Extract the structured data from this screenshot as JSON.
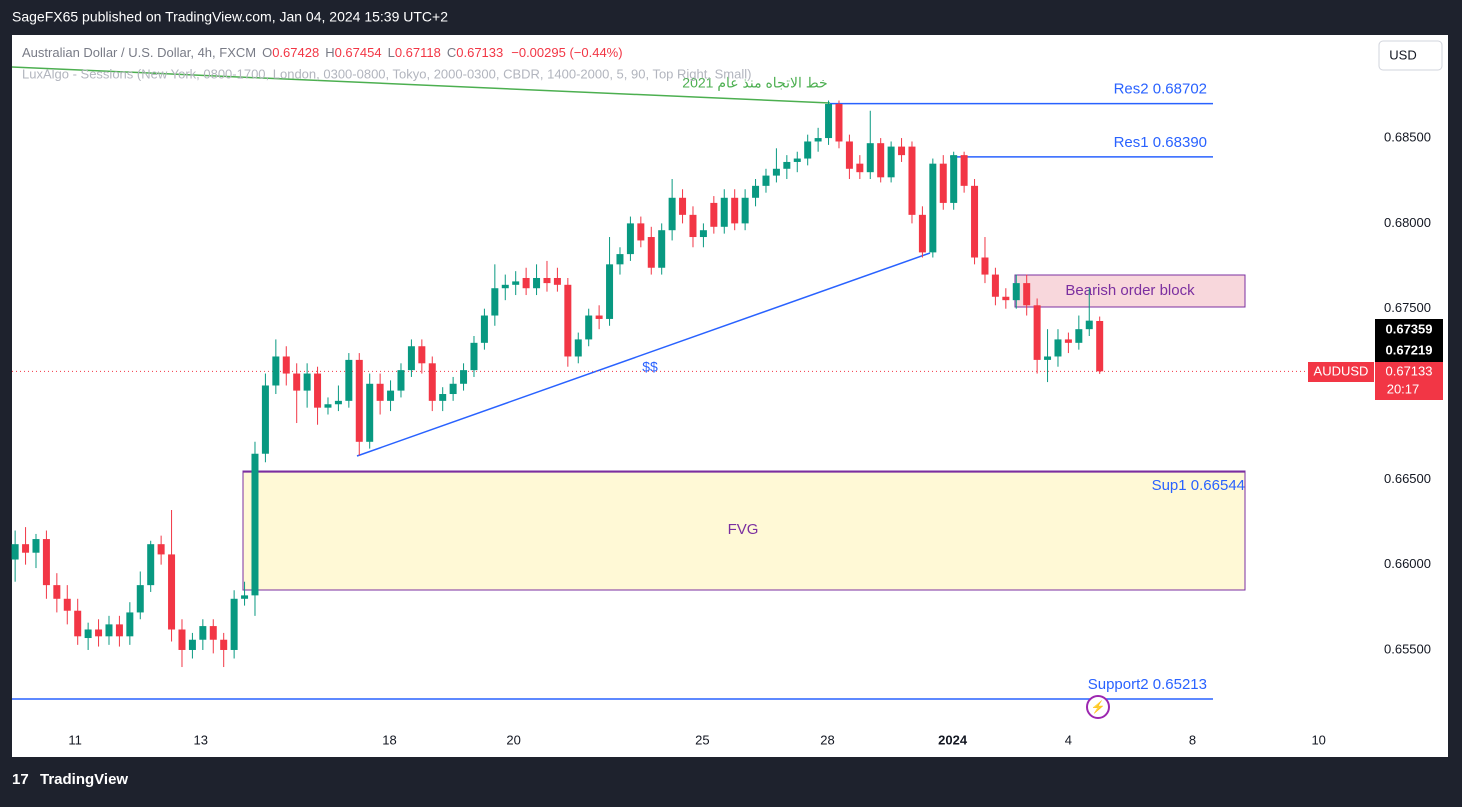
{
  "header": {
    "publisher": "SageFX65 published on TradingView.com, Jan 04, 2024 15:39 UTC+2",
    "footer": "TradingView",
    "currency": "USD"
  },
  "legend": {
    "symbol": "Australian Dollar / U.S. Dollar, 4h, FXCM",
    "open_label": "O",
    "open": "0.67428",
    "high_label": "H",
    "high": "0.67454",
    "low_label": "L",
    "low": "0.67118",
    "close_label": "C",
    "close": "0.67133",
    "change": "−0.00295 (−0.44%)",
    "indicator": "LuxAlgo - Sessions (New York, 0800-1700, London, 0300-0800, Tokyo, 2000-0300, CBDR, 1400-2000, 5, 90, Top Right, Small)"
  },
  "annotations": {
    "trendline": "خط الاتجاه منذ عام 2021",
    "liquidity": "$$",
    "fvg": "FVG",
    "order_block": "Bearish order block"
  },
  "price_tags": {
    "tag1": "0.67359",
    "tag2": "0.67219",
    "symbol": "AUDUSD",
    "last": "0.67133",
    "countdown": "20:17"
  },
  "chart_data": {
    "type": "candlestick",
    "ylim": [
      0.65031,
      0.69104
    ],
    "yticks": [
      {
        "value": 0.685,
        "label": "0.68500"
      },
      {
        "value": 0.68,
        "label": "0.68000"
      },
      {
        "value": 0.675,
        "label": "0.67500"
      },
      {
        "value": 0.67,
        "label": "0.67000"
      },
      {
        "value": 0.665,
        "label": "0.66500"
      },
      {
        "value": 0.66,
        "label": "0.66000"
      },
      {
        "value": 0.655,
        "label": "0.65500"
      }
    ],
    "xlim": [
      -0.3,
      137.4
    ],
    "xticks": [
      {
        "value": 5.75,
        "label": "11"
      },
      {
        "value": 17.8,
        "label": "13"
      },
      {
        "value": 35.9,
        "label": "18"
      },
      {
        "value": 47.8,
        "label": "20"
      },
      {
        "value": 65.9,
        "label": "25"
      },
      {
        "value": 77.9,
        "label": "28"
      },
      {
        "value": 89.9,
        "label": "2024"
      },
      {
        "value": 101,
        "label": "4"
      },
      {
        "value": 112.9,
        "label": "8"
      },
      {
        "value": 125,
        "label": "10"
      }
    ],
    "up_color": "#089981",
    "down_color": "#f23645",
    "levels": [
      {
        "label": "Res2 0.68702",
        "value": 0.68702
      },
      {
        "label": "Res1 0.68390",
        "value": 0.6839
      },
      {
        "label": "Sup1 0.66544",
        "value": 0.66544
      },
      {
        "label": "Support2  0.65213",
        "value": 0.65213
      }
    ],
    "candles": [
      [
        0.6603,
        0.662,
        0.659,
        0.6612
      ],
      [
        0.6612,
        0.6622,
        0.66,
        0.6607
      ],
      [
        0.6607,
        0.6618,
        0.6598,
        0.6615
      ],
      [
        0.6615,
        0.662,
        0.658,
        0.6588
      ],
      [
        0.6588,
        0.6595,
        0.6572,
        0.658
      ],
      [
        0.658,
        0.6588,
        0.6565,
        0.6573
      ],
      [
        0.6573,
        0.658,
        0.6553,
        0.6558
      ],
      [
        0.6557,
        0.6566,
        0.655,
        0.6562
      ],
      [
        0.6562,
        0.6568,
        0.6552,
        0.6558
      ],
      [
        0.6558,
        0.657,
        0.6553,
        0.6565
      ],
      [
        0.6565,
        0.657,
        0.6552,
        0.6558
      ],
      [
        0.6558,
        0.6578,
        0.6553,
        0.6572
      ],
      [
        0.6572,
        0.6596,
        0.6568,
        0.6588
      ],
      [
        0.6588,
        0.6614,
        0.6584,
        0.6612
      ],
      [
        0.6612,
        0.6617,
        0.66,
        0.6606
      ],
      [
        0.6606,
        0.6632,
        0.6555,
        0.6562
      ],
      [
        0.6562,
        0.6568,
        0.654,
        0.655
      ],
      [
        0.655,
        0.656,
        0.6545,
        0.6556
      ],
      [
        0.6556,
        0.6568,
        0.655,
        0.6564
      ],
      [
        0.6564,
        0.6568,
        0.6548,
        0.6556
      ],
      [
        0.6556,
        0.656,
        0.654,
        0.655
      ],
      [
        0.655,
        0.6585,
        0.6545,
        0.658
      ],
      [
        0.658,
        0.659,
        0.6576,
        0.6582
      ],
      [
        0.6582,
        0.6672,
        0.657,
        0.6665
      ],
      [
        0.6665,
        0.6712,
        0.666,
        0.6705
      ],
      [
        0.6705,
        0.6732,
        0.67,
        0.6722
      ],
      [
        0.6722,
        0.6728,
        0.6705,
        0.6712
      ],
      [
        0.6712,
        0.6718,
        0.6683,
        0.6702
      ],
      [
        0.6702,
        0.6718,
        0.6692,
        0.6712
      ],
      [
        0.6712,
        0.6716,
        0.6682,
        0.6692
      ],
      [
        0.6692,
        0.6698,
        0.6688,
        0.6694
      ],
      [
        0.6694,
        0.6705,
        0.669,
        0.6696
      ],
      [
        0.6696,
        0.6724,
        0.6692,
        0.672
      ],
      [
        0.672,
        0.6724,
        0.6664,
        0.6672
      ],
      [
        0.6672,
        0.6712,
        0.6668,
        0.6706
      ],
      [
        0.6706,
        0.6712,
        0.6688,
        0.6696
      ],
      [
        0.6696,
        0.6708,
        0.669,
        0.6702
      ],
      [
        0.6702,
        0.6718,
        0.6698,
        0.6714
      ],
      [
        0.6714,
        0.6732,
        0.671,
        0.6728
      ],
      [
        0.6728,
        0.6732,
        0.6712,
        0.6718
      ],
      [
        0.6718,
        0.6722,
        0.669,
        0.6696
      ],
      [
        0.6696,
        0.6704,
        0.669,
        0.67
      ],
      [
        0.67,
        0.671,
        0.6696,
        0.6706
      ],
      [
        0.6706,
        0.6718,
        0.6702,
        0.6714
      ],
      [
        0.6714,
        0.6734,
        0.671,
        0.673
      ],
      [
        0.673,
        0.675,
        0.6726,
        0.6746
      ],
      [
        0.6746,
        0.6776,
        0.674,
        0.6762
      ],
      [
        0.6762,
        0.677,
        0.6755,
        0.6764
      ],
      [
        0.6764,
        0.6772,
        0.6758,
        0.6766
      ],
      [
        0.6768,
        0.6774,
        0.6758,
        0.6762
      ],
      [
        0.6762,
        0.6776,
        0.6758,
        0.6768
      ],
      [
        0.6768,
        0.6778,
        0.676,
        0.6765
      ],
      [
        0.6768,
        0.6774,
        0.676,
        0.6764
      ],
      [
        0.6764,
        0.6768,
        0.6716,
        0.6722
      ],
      [
        0.6722,
        0.6736,
        0.6718,
        0.6732
      ],
      [
        0.6732,
        0.675,
        0.6728,
        0.6746
      ],
      [
        0.6746,
        0.6752,
        0.6738,
        0.6744
      ],
      [
        0.6744,
        0.6792,
        0.674,
        0.6776
      ],
      [
        0.6776,
        0.6786,
        0.677,
        0.6782
      ],
      [
        0.6782,
        0.6804,
        0.6778,
        0.68
      ],
      [
        0.68,
        0.6804,
        0.6786,
        0.679
      ],
      [
        0.6792,
        0.6798,
        0.677,
        0.6774
      ],
      [
        0.6774,
        0.68,
        0.677,
        0.6796
      ],
      [
        0.6796,
        0.6826,
        0.679,
        0.6815
      ],
      [
        0.6815,
        0.682,
        0.68,
        0.6805
      ],
      [
        0.6805,
        0.681,
        0.6786,
        0.6792
      ],
      [
        0.6792,
        0.68,
        0.6786,
        0.6796
      ],
      [
        0.6812,
        0.6816,
        0.6794,
        0.6798
      ],
      [
        0.6798,
        0.682,
        0.6794,
        0.6815
      ],
      [
        0.6815,
        0.682,
        0.6796,
        0.68
      ],
      [
        0.68,
        0.682,
        0.6796,
        0.6815
      ],
      [
        0.6815,
        0.6826,
        0.681,
        0.6822
      ],
      [
        0.6822,
        0.6832,
        0.6818,
        0.6828
      ],
      [
        0.6828,
        0.6844,
        0.6824,
        0.6832
      ],
      [
        0.6832,
        0.684,
        0.6826,
        0.6836
      ],
      [
        0.6836,
        0.6842,
        0.683,
        0.6838
      ],
      [
        0.6838,
        0.6852,
        0.6834,
        0.6848
      ],
      [
        0.6848,
        0.6856,
        0.6842,
        0.685
      ],
      [
        0.685,
        0.6872,
        0.6846,
        0.687
      ],
      [
        0.687,
        0.6872,
        0.6844,
        0.6848
      ],
      [
        0.6848,
        0.6852,
        0.6826,
        0.6832
      ],
      [
        0.6835,
        0.684,
        0.6826,
        0.683
      ],
      [
        0.683,
        0.6866,
        0.6826,
        0.6847
      ],
      [
        0.6847,
        0.685,
        0.6824,
        0.6827
      ],
      [
        0.6827,
        0.6848,
        0.6824,
        0.6845
      ],
      [
        0.6845,
        0.685,
        0.6836,
        0.684
      ],
      [
        0.6845,
        0.6848,
        0.68,
        0.6805
      ],
      [
        0.6805,
        0.681,
        0.678,
        0.6783
      ],
      [
        0.6783,
        0.6838,
        0.678,
        0.6835
      ],
      [
        0.6835,
        0.684,
        0.6808,
        0.6812
      ],
      [
        0.6812,
        0.6842,
        0.6808,
        0.684
      ],
      [
        0.684,
        0.6842,
        0.6818,
        0.6822
      ],
      [
        0.6822,
        0.6826,
        0.6776,
        0.678
      ],
      [
        0.678,
        0.6792,
        0.6765,
        0.677
      ],
      [
        0.677,
        0.6774,
        0.6752,
        0.6757
      ],
      [
        0.6757,
        0.6762,
        0.675,
        0.6755
      ],
      [
        0.6755,
        0.677,
        0.675,
        0.6765
      ],
      [
        0.6765,
        0.677,
        0.6746,
        0.6752
      ],
      [
        0.6752,
        0.6756,
        0.6712,
        0.672
      ],
      [
        0.672,
        0.6738,
        0.6707,
        0.6722
      ],
      [
        0.6722,
        0.6738,
        0.6716,
        0.6732
      ],
      [
        0.6732,
        0.6736,
        0.6724,
        0.673
      ],
      [
        0.673,
        0.6746,
        0.6726,
        0.6738
      ],
      [
        0.6738,
        0.6762,
        0.6734,
        0.6743
      ],
      [
        0.67428,
        0.67454,
        0.67118,
        0.67133
      ]
    ]
  }
}
